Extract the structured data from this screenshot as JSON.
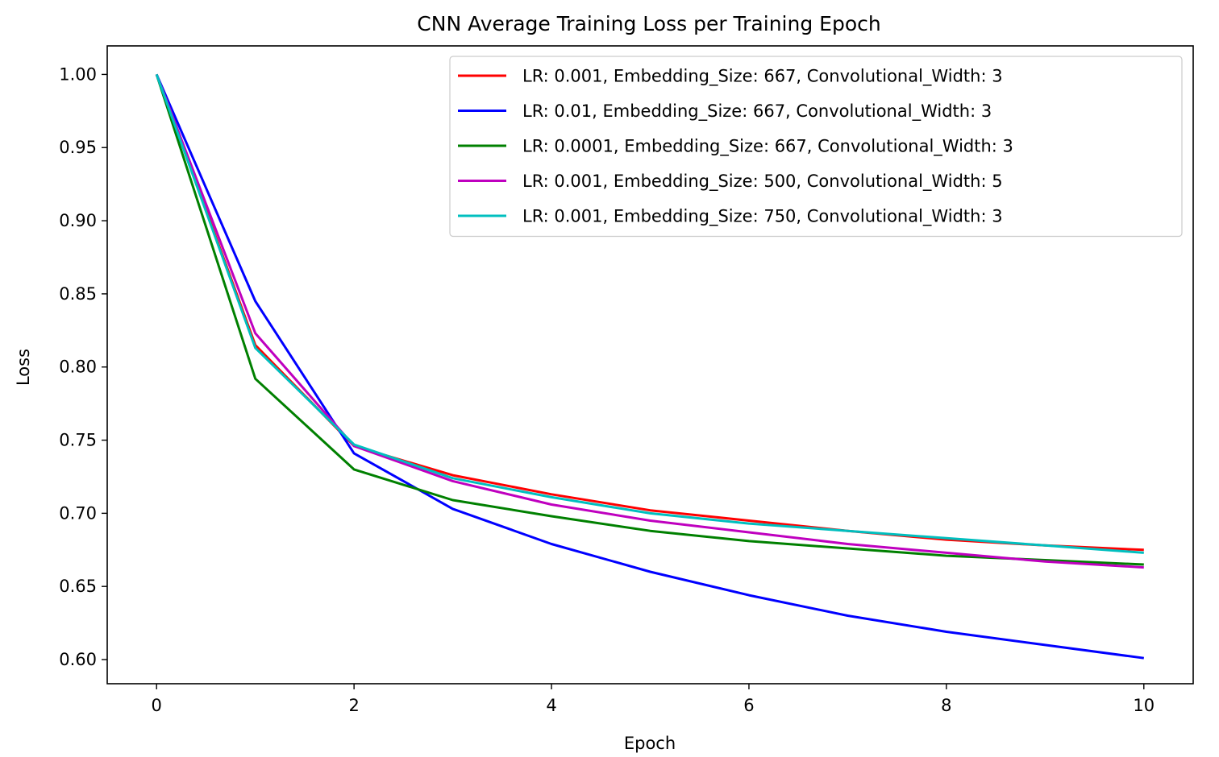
{
  "chart_data": {
    "type": "line",
    "title": "CNN Average Training Loss per Training Epoch",
    "xlabel": "Epoch",
    "ylabel": "Loss",
    "xlim": [
      -0.5,
      10.5
    ],
    "ylim": [
      0.5835,
      1.0195
    ],
    "xticks": [
      0,
      2,
      4,
      6,
      8,
      10
    ],
    "xtick_labels": [
      "0",
      "2",
      "4",
      "6",
      "8",
      "10"
    ],
    "yticks": [
      0.6,
      0.65,
      0.7,
      0.75,
      0.8,
      0.85,
      0.9,
      0.95,
      1.0
    ],
    "ytick_labels": [
      "0.60",
      "0.65",
      "0.70",
      "0.75",
      "0.80",
      "0.85",
      "0.90",
      "0.95",
      "1.00"
    ],
    "grid": false,
    "legend_position": "top-right",
    "x": [
      0,
      1,
      2,
      3,
      4,
      5,
      6,
      7,
      8,
      9,
      10
    ],
    "series": [
      {
        "name": "LR: 0.001, Embedding_Size: 667, Convolutional_Width: 3",
        "color": "#ff0000",
        "values": [
          1.0,
          0.815,
          0.746,
          0.726,
          0.713,
          0.702,
          0.695,
          0.688,
          0.682,
          0.678,
          0.675
        ]
      },
      {
        "name": "LR: 0.01, Embedding_Size: 667, Convolutional_Width: 3",
        "color": "#0000ff",
        "values": [
          1.0,
          0.845,
          0.741,
          0.703,
          0.679,
          0.66,
          0.644,
          0.63,
          0.619,
          0.61,
          0.601
        ]
      },
      {
        "name": "LR: 0.0001, Embedding_Size: 667, Convolutional_Width: 3",
        "color": "#008000",
        "values": [
          1.0,
          0.792,
          0.73,
          0.709,
          0.698,
          0.688,
          0.681,
          0.676,
          0.671,
          0.668,
          0.665
        ]
      },
      {
        "name": "LR: 0.001, Embedding_Size: 500, Convolutional_Width: 5",
        "color": "#bf00bf",
        "values": [
          1.0,
          0.823,
          0.746,
          0.722,
          0.706,
          0.695,
          0.687,
          0.679,
          0.673,
          0.667,
          0.663
        ]
      },
      {
        "name": "LR: 0.001, Embedding_Size: 750, Convolutional_Width: 3",
        "color": "#00bfbf",
        "values": [
          1.0,
          0.813,
          0.747,
          0.724,
          0.711,
          0.7,
          0.693,
          0.688,
          0.683,
          0.678,
          0.673
        ]
      }
    ]
  }
}
